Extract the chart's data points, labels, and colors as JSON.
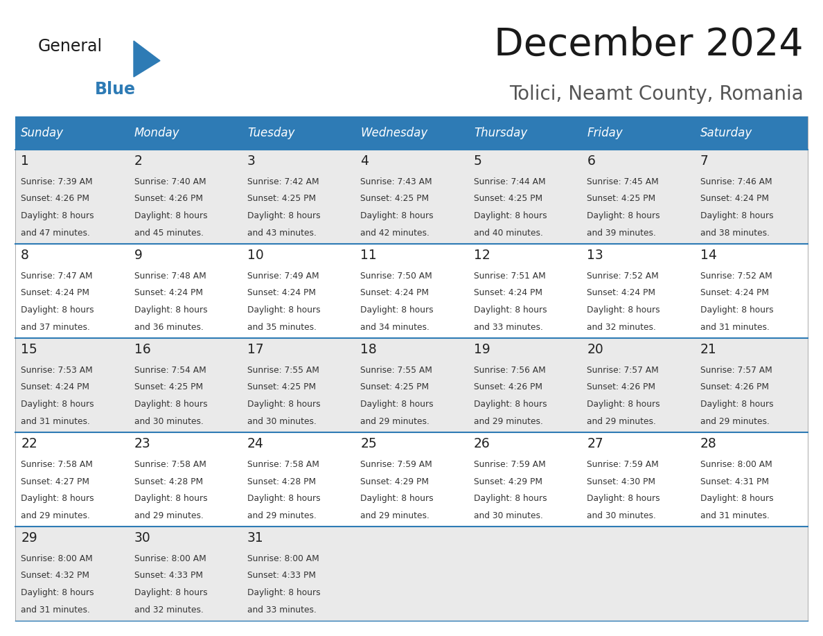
{
  "title": "December 2024",
  "subtitle": "Tolici, Neamt County, Romania",
  "header_bg_color": "#2E7BB5",
  "header_text_color": "#FFFFFF",
  "days_of_week": [
    "Sunday",
    "Monday",
    "Tuesday",
    "Wednesday",
    "Thursday",
    "Friday",
    "Saturday"
  ],
  "row_bg_odd": "#EAEAEA",
  "row_bg_even": "#FFFFFF",
  "separator_color": "#2E7BB5",
  "calendar": [
    [
      {
        "day": 1,
        "sunrise": "7:39 AM",
        "sunset": "4:26 PM",
        "daylight": "8 hours and 47 minutes."
      },
      {
        "day": 2,
        "sunrise": "7:40 AM",
        "sunset": "4:26 PM",
        "daylight": "8 hours and 45 minutes."
      },
      {
        "day": 3,
        "sunrise": "7:42 AM",
        "sunset": "4:25 PM",
        "daylight": "8 hours and 43 minutes."
      },
      {
        "day": 4,
        "sunrise": "7:43 AM",
        "sunset": "4:25 PM",
        "daylight": "8 hours and 42 minutes."
      },
      {
        "day": 5,
        "sunrise": "7:44 AM",
        "sunset": "4:25 PM",
        "daylight": "8 hours and 40 minutes."
      },
      {
        "day": 6,
        "sunrise": "7:45 AM",
        "sunset": "4:25 PM",
        "daylight": "8 hours and 39 minutes."
      },
      {
        "day": 7,
        "sunrise": "7:46 AM",
        "sunset": "4:24 PM",
        "daylight": "8 hours and 38 minutes."
      }
    ],
    [
      {
        "day": 8,
        "sunrise": "7:47 AM",
        "sunset": "4:24 PM",
        "daylight": "8 hours and 37 minutes."
      },
      {
        "day": 9,
        "sunrise": "7:48 AM",
        "sunset": "4:24 PM",
        "daylight": "8 hours and 36 minutes."
      },
      {
        "day": 10,
        "sunrise": "7:49 AM",
        "sunset": "4:24 PM",
        "daylight": "8 hours and 35 minutes."
      },
      {
        "day": 11,
        "sunrise": "7:50 AM",
        "sunset": "4:24 PM",
        "daylight": "8 hours and 34 minutes."
      },
      {
        "day": 12,
        "sunrise": "7:51 AM",
        "sunset": "4:24 PM",
        "daylight": "8 hours and 33 minutes."
      },
      {
        "day": 13,
        "sunrise": "7:52 AM",
        "sunset": "4:24 PM",
        "daylight": "8 hours and 32 minutes."
      },
      {
        "day": 14,
        "sunrise": "7:52 AM",
        "sunset": "4:24 PM",
        "daylight": "8 hours and 31 minutes."
      }
    ],
    [
      {
        "day": 15,
        "sunrise": "7:53 AM",
        "sunset": "4:24 PM",
        "daylight": "8 hours and 31 minutes."
      },
      {
        "day": 16,
        "sunrise": "7:54 AM",
        "sunset": "4:25 PM",
        "daylight": "8 hours and 30 minutes."
      },
      {
        "day": 17,
        "sunrise": "7:55 AM",
        "sunset": "4:25 PM",
        "daylight": "8 hours and 30 minutes."
      },
      {
        "day": 18,
        "sunrise": "7:55 AM",
        "sunset": "4:25 PM",
        "daylight": "8 hours and 29 minutes."
      },
      {
        "day": 19,
        "sunrise": "7:56 AM",
        "sunset": "4:26 PM",
        "daylight": "8 hours and 29 minutes."
      },
      {
        "day": 20,
        "sunrise": "7:57 AM",
        "sunset": "4:26 PM",
        "daylight": "8 hours and 29 minutes."
      },
      {
        "day": 21,
        "sunrise": "7:57 AM",
        "sunset": "4:26 PM",
        "daylight": "8 hours and 29 minutes."
      }
    ],
    [
      {
        "day": 22,
        "sunrise": "7:58 AM",
        "sunset": "4:27 PM",
        "daylight": "8 hours and 29 minutes."
      },
      {
        "day": 23,
        "sunrise": "7:58 AM",
        "sunset": "4:28 PM",
        "daylight": "8 hours and 29 minutes."
      },
      {
        "day": 24,
        "sunrise": "7:58 AM",
        "sunset": "4:28 PM",
        "daylight": "8 hours and 29 minutes."
      },
      {
        "day": 25,
        "sunrise": "7:59 AM",
        "sunset": "4:29 PM",
        "daylight": "8 hours and 29 minutes."
      },
      {
        "day": 26,
        "sunrise": "7:59 AM",
        "sunset": "4:29 PM",
        "daylight": "8 hours and 30 minutes."
      },
      {
        "day": 27,
        "sunrise": "7:59 AM",
        "sunset": "4:30 PM",
        "daylight": "8 hours and 30 minutes."
      },
      {
        "day": 28,
        "sunrise": "8:00 AM",
        "sunset": "4:31 PM",
        "daylight": "8 hours and 31 minutes."
      }
    ],
    [
      {
        "day": 29,
        "sunrise": "8:00 AM",
        "sunset": "4:32 PM",
        "daylight": "8 hours and 31 minutes."
      },
      {
        "day": 30,
        "sunrise": "8:00 AM",
        "sunset": "4:33 PM",
        "daylight": "8 hours and 32 minutes."
      },
      {
        "day": 31,
        "sunrise": "8:00 AM",
        "sunset": "4:33 PM",
        "daylight": "8 hours and 33 minutes."
      },
      null,
      null,
      null,
      null
    ]
  ],
  "fig_width": 11.88,
  "fig_height": 9.18,
  "dpi": 100
}
